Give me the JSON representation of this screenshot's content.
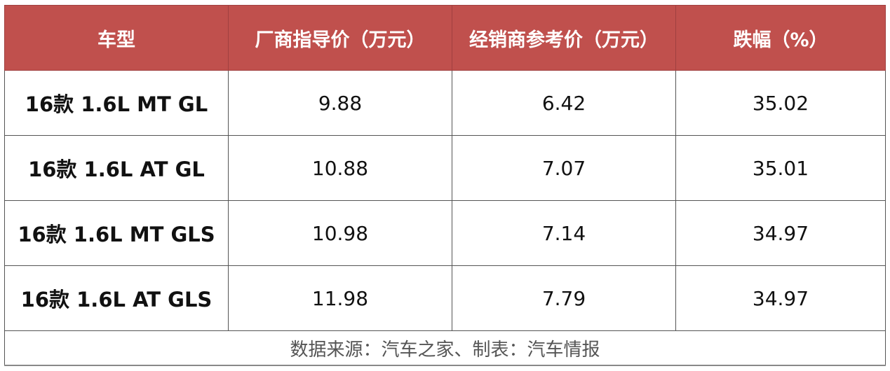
{
  "chart_data": {
    "type": "table",
    "header_color": "#C0504D",
    "columns": [
      "车型",
      "厂商指导价（万元）",
      "经销商参考价（万元）",
      "跌幅（%）"
    ],
    "rows": [
      [
        "16款  1.6L MT GL",
        "9.88",
        "6.42",
        "35.02"
      ],
      [
        "16款  1.6L AT GL",
        "10.88",
        "7.07",
        "35.01"
      ],
      [
        "16款  1.6L MT GLS",
        "10.98",
        "7.14",
        "34.97"
      ],
      [
        "16款  1.6L AT GLS",
        "11.98",
        "7.79",
        "34.97"
      ]
    ],
    "footer": "数据来源：汽车之家、制表：汽车情报"
  }
}
